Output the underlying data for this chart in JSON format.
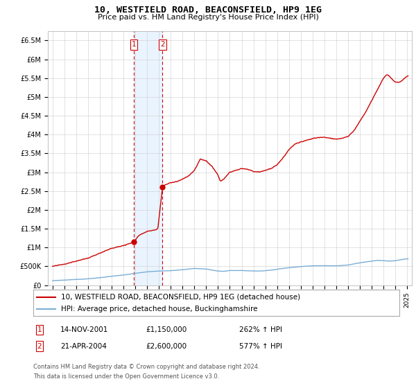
{
  "title": "10, WESTFIELD ROAD, BEACONSFIELD, HP9 1EG",
  "subtitle": "Price paid vs. HM Land Registry's House Price Index (HPI)",
  "legend_line1": "10, WESTFIELD ROAD, BEACONSFIELD, HP9 1EG (detached house)",
  "legend_line2": "HPI: Average price, detached house, Buckinghamshire",
  "transaction1_label": "1",
  "transaction1_date": "14-NOV-2001",
  "transaction1_price": "£1,150,000",
  "transaction1_hpi": "262% ↑ HPI",
  "transaction2_label": "2",
  "transaction2_date": "21-APR-2004",
  "transaction2_price": "£2,600,000",
  "transaction2_hpi": "577% ↑ HPI",
  "footnote1": "Contains HM Land Registry data © Crown copyright and database right 2024.",
  "footnote2": "This data is licensed under the Open Government Licence v3.0.",
  "house_color": "#cc0000",
  "hpi_color": "#7aadd4",
  "transaction1_x": 2001.88,
  "transaction1_y": 1150000,
  "transaction2_x": 2004.3,
  "transaction2_y": 2600000,
  "ylim_min": 0,
  "ylim_max": 6750000,
  "yticks": [
    0,
    500000,
    1000000,
    1500000,
    2000000,
    2500000,
    3000000,
    3500000,
    4000000,
    4500000,
    5000000,
    5500000,
    6000000,
    6500000
  ],
  "ytick_labels": [
    "£0",
    "£500K",
    "£1M",
    "£1.5M",
    "£2M",
    "£2.5M",
    "£3M",
    "£3.5M",
    "£4M",
    "£4.5M",
    "£5M",
    "£5.5M",
    "£6M",
    "£6.5M"
  ],
  "background_color": "#ffffff",
  "grid_color": "#cccccc",
  "highlight_color": "#ddeeff",
  "highlight_region_x1": 2001.88,
  "highlight_region_x2": 2004.3,
  "xlim_min": 1994.6,
  "xlim_max": 2025.4
}
